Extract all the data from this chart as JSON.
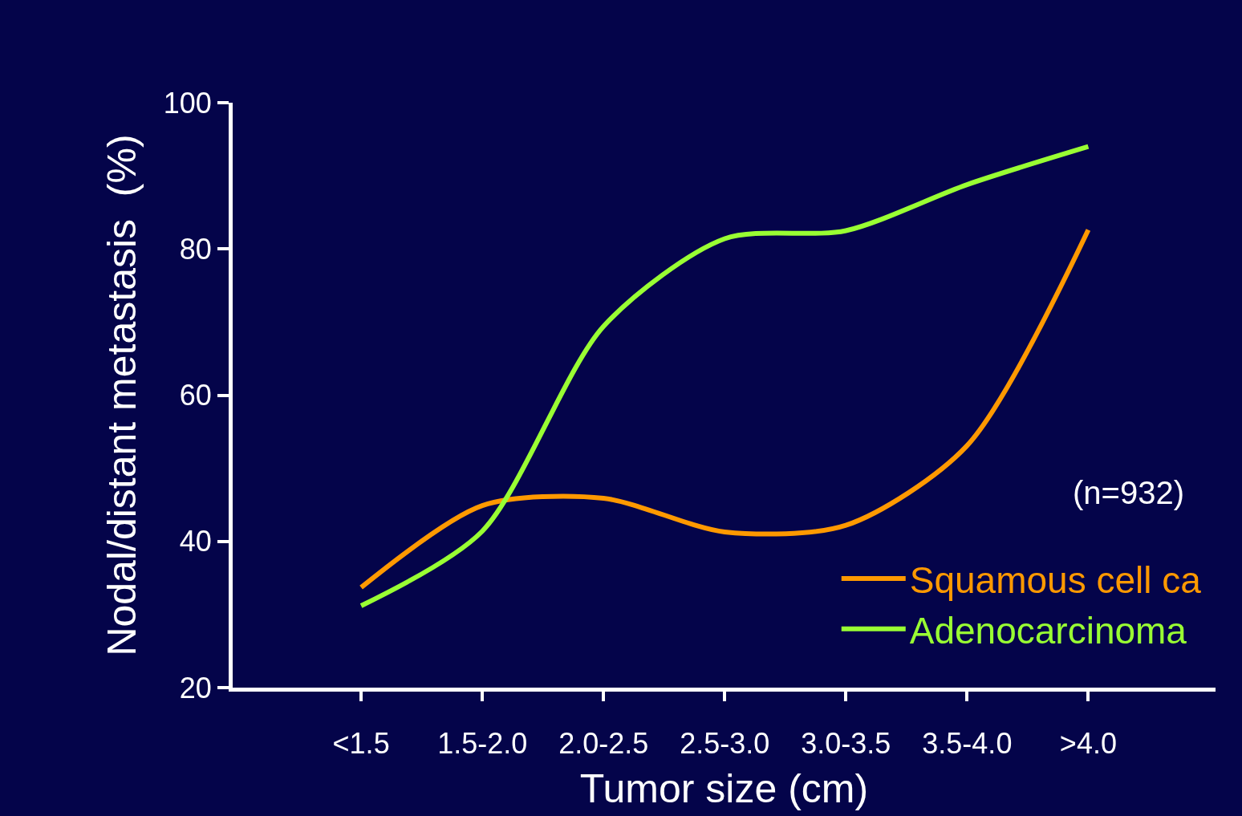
{
  "chart_data": {
    "type": "line",
    "xlabel": "Tumor size (cm)",
    "ylabel": "Nodal/distant metastasis  (%)",
    "categories": [
      "<1.5",
      "1.5-2.0",
      "2.0-2.5",
      "2.5-3.0",
      "3.0-3.5",
      "3.5-4.0",
      ">4.0"
    ],
    "series": [
      {
        "name": "Squamous cell ca",
        "color": "#ff9900",
        "values": [
          33.7,
          44.9,
          45.9,
          41.3,
          42.2,
          53.1,
          82.6
        ]
      },
      {
        "name": "Adenocarcinoma",
        "color": "#99ff33",
        "values": [
          31.2,
          41.4,
          69.4,
          81.4,
          82.5,
          88.8,
          94.0
        ]
      }
    ],
    "ylim": [
      20,
      100
    ],
    "yticks": [
      20,
      40,
      60,
      80,
      100
    ],
    "annotations": [
      "(n=932)"
    ],
    "grid": false,
    "legend": "bottom right",
    "marker": "none",
    "line_style": "solid"
  }
}
